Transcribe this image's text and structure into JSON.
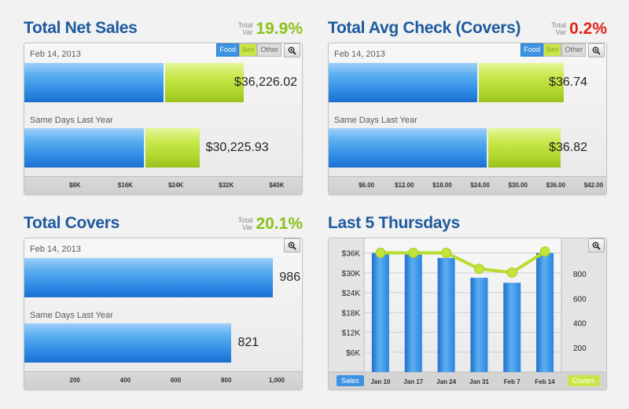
{
  "colors": {
    "title": "#1d5a9e",
    "green_var": "#8cc21a",
    "red_var": "#e1251b",
    "bar_blue": "#2f8de6",
    "bar_green": "#afd52a"
  },
  "toggles": {
    "food": "Food",
    "bev": "Bev",
    "other": "Other"
  },
  "net_sales": {
    "title": "Total Net Sales",
    "var_label_1": "Total",
    "var_label_2": "Var",
    "var_value": "19.9%",
    "date": "Feb 14, 2013",
    "current_value": "$36,226.02",
    "current_food": 22000,
    "current_bev": 12500,
    "last_year_label": "Same Days Last Year",
    "last_year_value": "$30,225.93",
    "last_year_food": 19000,
    "last_year_bev": 8500,
    "axis_max": 44000,
    "ticks": [
      {
        "v": 8000,
        "t": "$8K"
      },
      {
        "v": 16000,
        "t": "$16K"
      },
      {
        "v": 24000,
        "t": "$24K"
      },
      {
        "v": 32000,
        "t": "$32K"
      },
      {
        "v": 40000,
        "t": "$40K"
      }
    ]
  },
  "avg_check": {
    "title": "Total Avg Check (Covers)",
    "var_label_1": "Total",
    "var_label_2": "Var",
    "var_value": "0.2%",
    "date": "Feb 14, 2013",
    "current_value": "$36.74",
    "current_food": 23.5,
    "current_bev": 13.5,
    "last_year_label": "Same Days Last Year",
    "last_year_value": "$36.82",
    "last_year_food": 25,
    "last_year_bev": 11.5,
    "axis_max": 44,
    "ticks": [
      {
        "v": 6,
        "t": "$6.00"
      },
      {
        "v": 12,
        "t": "$12.00"
      },
      {
        "v": 18,
        "t": "$18.00"
      },
      {
        "v": 24,
        "t": "$24.00"
      },
      {
        "v": 30,
        "t": "$30.00"
      },
      {
        "v": 36,
        "t": "$36.00"
      },
      {
        "v": 42,
        "t": "$42.00"
      }
    ]
  },
  "covers": {
    "title": "Total Covers",
    "var_label_1": "Total",
    "var_label_2": "Var",
    "var_value": "20.1%",
    "date": "Feb 14, 2013",
    "current_value": "986",
    "current": 986,
    "last_year_label": "Same Days Last Year",
    "last_year_value": "821",
    "last_year": 821,
    "axis_max": 1100,
    "ticks": [
      {
        "v": 200,
        "t": "200"
      },
      {
        "v": 400,
        "t": "400"
      },
      {
        "v": 600,
        "t": "600"
      },
      {
        "v": 800,
        "t": "800"
      },
      {
        "v": 1000,
        "t": "1,000"
      }
    ]
  },
  "thursdays": {
    "title": "Last 5 Thursdays",
    "sales_label": "Sales",
    "covers_label": "Covers",
    "left_ticks": [
      "$36K",
      "$30K",
      "$24K",
      "$18K",
      "$12K",
      "$6K"
    ],
    "right_ticks": [
      "800",
      "600",
      "400",
      "200"
    ]
  },
  "chart_data": {
    "type": "bar",
    "title": "Last 5 Thursdays",
    "categories": [
      "Jan 10",
      "Jan 17",
      "Jan 24",
      "Jan 31",
      "Feb 7",
      "Feb 14"
    ],
    "series": [
      {
        "name": "Sales",
        "axis": "left",
        "values": [
          36000,
          35500,
          34500,
          28500,
          27000,
          36000
        ]
      },
      {
        "name": "Covers",
        "axis": "right",
        "type": "line",
        "values": [
          970,
          970,
          970,
          840,
          810,
          980
        ]
      }
    ],
    "y_left": {
      "ticks": [
        6000,
        12000,
        18000,
        24000,
        30000,
        36000
      ],
      "min": 0,
      "max": 39000
    },
    "y_right": {
      "ticks": [
        200,
        400,
        600,
        800
      ],
      "min": 0,
      "max": 1050
    }
  }
}
